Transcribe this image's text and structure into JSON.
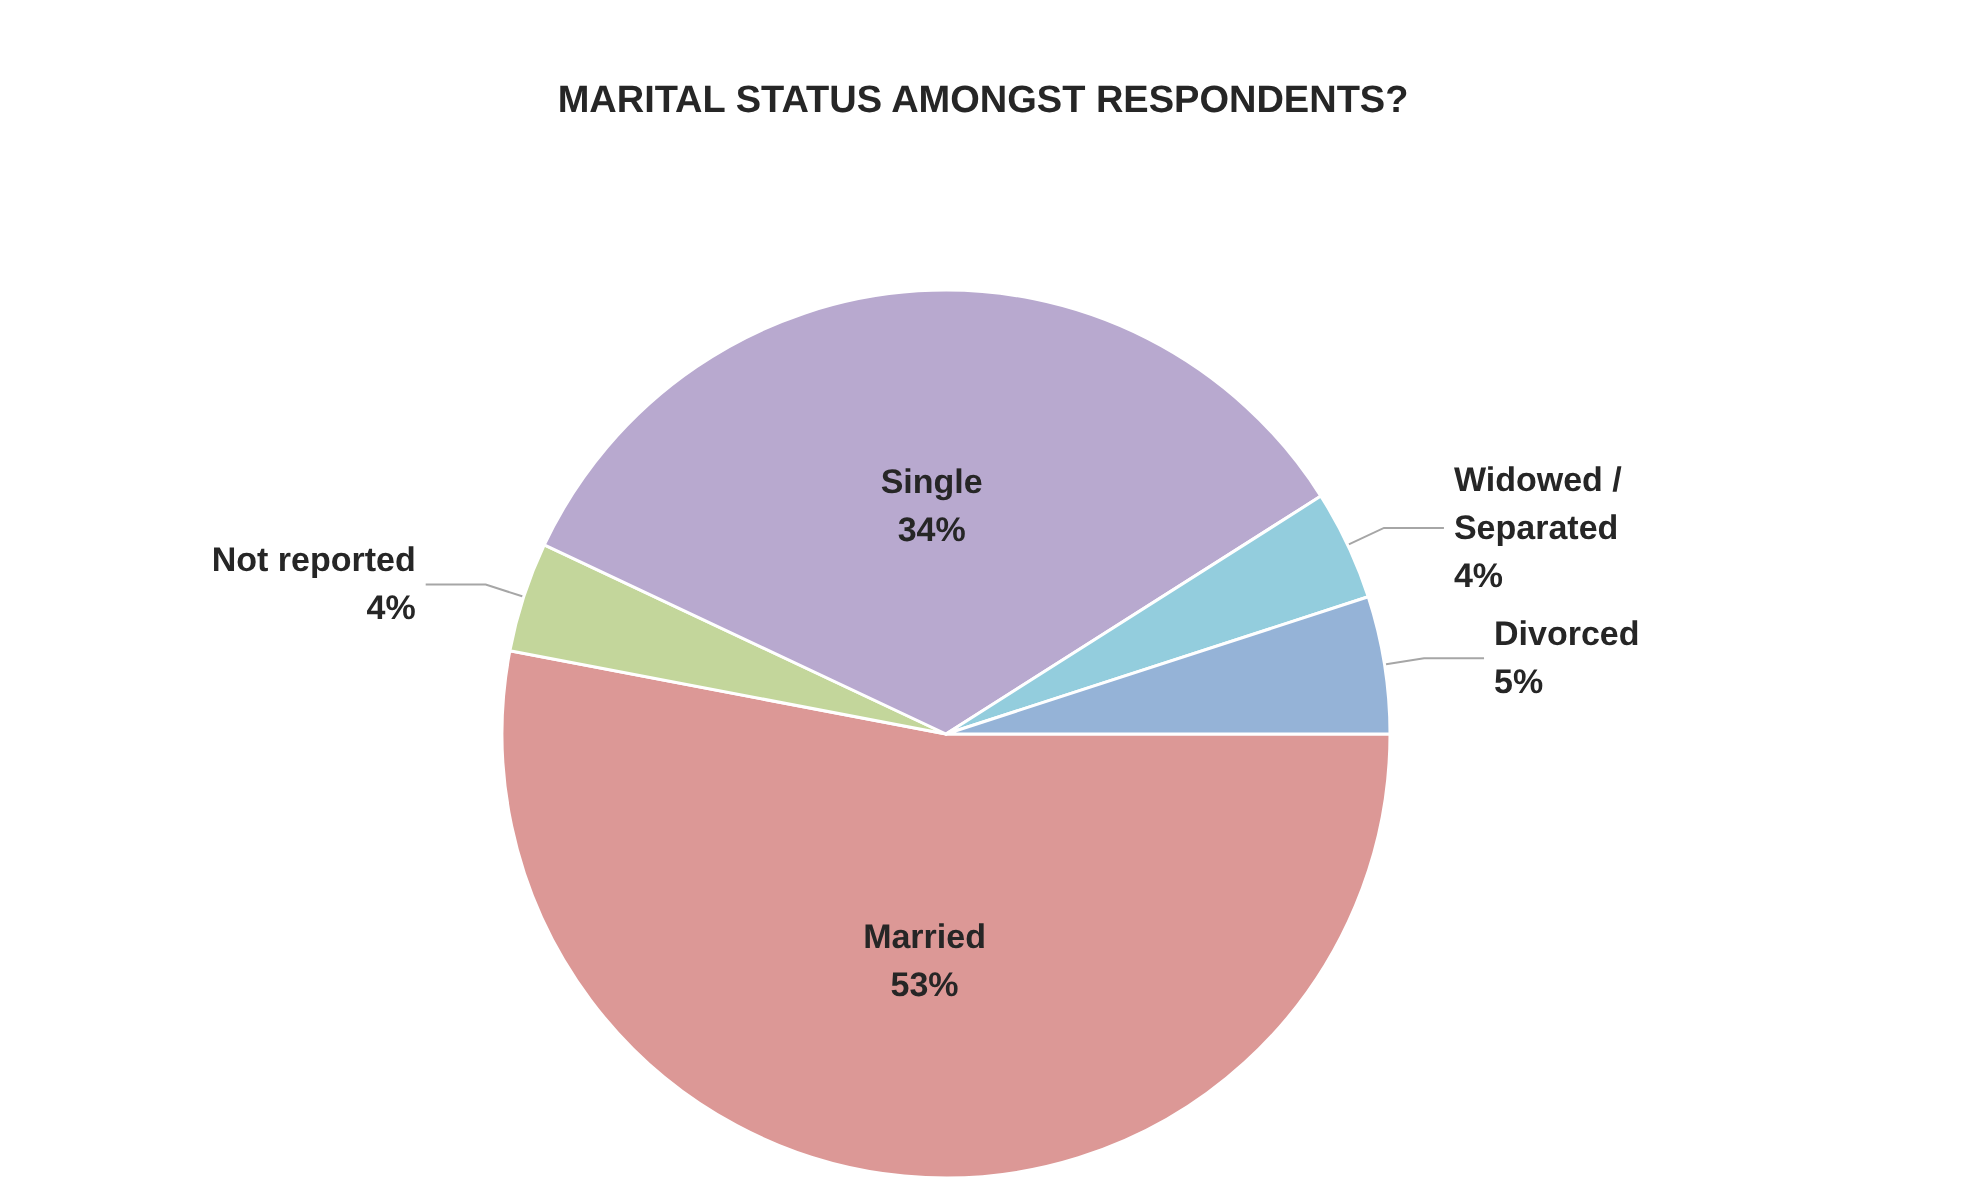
{
  "chart_data": {
    "type": "pie",
    "title": "MARITAL STATUS AMONGST RESPONDENTS?",
    "categories": [
      "Married",
      "Not reported",
      "Single",
      "Widowed / Separated",
      "Divorced"
    ],
    "values": [
      53,
      4,
      34,
      4,
      5
    ],
    "value_labels": [
      "53%",
      "4%",
      "34%",
      "4%",
      "5%"
    ],
    "colors": [
      "#dc9896",
      "#c3d69b",
      "#b8a9cf",
      "#93cddd",
      "#95b3d7"
    ],
    "legend": false
  }
}
